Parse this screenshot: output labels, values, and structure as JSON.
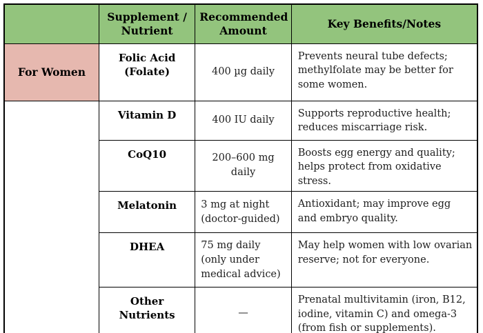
{
  "colors": {
    "header_bg": "#93c47d",
    "group_bg": "#e6b8af",
    "border": "#000000",
    "text": "#000000"
  },
  "table": {
    "headers": [
      "",
      "Supplement / Nutrient",
      "Recommended Amount",
      "Key Benefits/Notes"
    ],
    "row_group": {
      "label": "For Women"
    },
    "rows": [
      {
        "supplement": "Folic Acid (Folate)",
        "amount": "400 µg daily",
        "notes": "Prevents neural tube defects; methylfolate may be better for some women."
      },
      {
        "supplement": "Vitamin D",
        "amount": "400 IU daily",
        "notes": "Supports reproductive health; reduces miscarriage risk."
      },
      {
        "supplement": "CoQ10",
        "amount": "200–600 mg daily",
        "notes": "Boosts egg energy and quality; helps protect from oxidative stress."
      },
      {
        "supplement": "Melatonin",
        "amount": "3 mg at night (doctor-guided)",
        "notes": "Antioxidant; may improve egg and embryo quality."
      },
      {
        "supplement": "DHEA",
        "amount": "75 mg daily (only under medical advice)",
        "notes": "May help women with low ovarian reserve; not for everyone."
      },
      {
        "supplement": "Other Nutrients",
        "amount": "—",
        "notes": "Prenatal multivitamin (iron, B12, iodine, vitamin C) and omega-3 (from fish or supplements)."
      }
    ]
  }
}
